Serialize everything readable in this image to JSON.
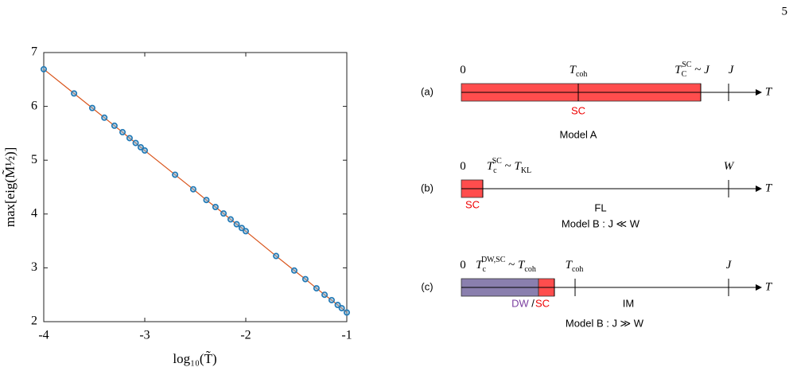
{
  "page_number": "5",
  "chart_data": {
    "type": "scatter",
    "connect": true,
    "x_label": "log₁₀(T̃)",
    "y_label": "max[eig(M̃½)]",
    "x": [
      -4,
      -3.7,
      -3.52,
      -3.4,
      -3.3,
      -3.22,
      -3.15,
      -3.09,
      -3.04,
      -3.0,
      -2.7,
      -2.52,
      -2.39,
      -2.3,
      -2.22,
      -2.15,
      -2.09,
      -2.04,
      -2.0,
      -1.7,
      -1.52,
      -1.41,
      -1.3,
      -1.22,
      -1.15,
      -1.09,
      -1.05,
      -1.0
    ],
    "values": [
      6.69,
      6.24,
      5.97,
      5.79,
      5.64,
      5.52,
      5.41,
      5.32,
      5.24,
      5.18,
      4.73,
      4.46,
      4.26,
      4.13,
      4.01,
      3.9,
      3.81,
      3.74,
      3.68,
      3.22,
      2.95,
      2.79,
      2.62,
      2.5,
      2.4,
      2.31,
      2.25,
      2.17
    ],
    "marker_color": "#1f77b4",
    "line_color": "#d95319",
    "xlim": [
      -4,
      -1
    ],
    "ylim": [
      2,
      7
    ],
    "xticks": [
      -4,
      -3,
      -2,
      -1
    ],
    "yticks": [
      2,
      3,
      4,
      5,
      6,
      7
    ]
  },
  "panels": [
    {
      "label": "(a)",
      "axis": "T",
      "ticks": [
        [
          {
            "text": "0"
          }
        ],
        [
          {
            "text": "T",
            "s": "i"
          },
          {
            "text": "coh",
            "s": "sub"
          }
        ],
        [
          {
            "text": "T",
            "s": "i"
          },
          {
            "text": "C",
            "s": "sub"
          },
          {
            "text": "SC",
            "s": "sup"
          },
          {
            "text": " ~ "
          },
          {
            "text": "J",
            "s": "i"
          }
        ],
        [
          {
            "text": "J",
            "s": "i"
          }
        ]
      ],
      "phases": [
        "SC"
      ],
      "model": "Model A"
    },
    {
      "label": "(b)",
      "axis": "T",
      "ticks": [
        [
          {
            "text": "0"
          }
        ],
        [
          {
            "text": "T",
            "s": "i"
          },
          {
            "text": "c",
            "s": "sub"
          },
          {
            "text": "SC",
            "s": "sup"
          },
          {
            "text": " ~ "
          },
          {
            "text": "T",
            "s": "i"
          },
          {
            "text": "KL",
            "s": "sub"
          }
        ],
        [
          {
            "text": "W",
            "s": "i"
          }
        ]
      ],
      "phases": [
        "SC",
        "FL"
      ],
      "model": "Model B : J ≪ W"
    },
    {
      "label": "(c)",
      "axis": "T",
      "ticks": [
        [
          {
            "text": "0"
          }
        ],
        [
          {
            "text": "T",
            "s": "i"
          },
          {
            "text": "c",
            "s": "sub"
          },
          {
            "text": "DW,SC",
            "s": "sup"
          },
          {
            "text": " ~ "
          },
          {
            "text": "T",
            "s": "i"
          },
          {
            "text": "coh",
            "s": "sub"
          }
        ],
        [
          {
            "text": "T",
            "s": "i"
          },
          {
            "text": "coh",
            "s": "sub"
          }
        ],
        [
          {
            "text": "J",
            "s": "i"
          }
        ]
      ],
      "phases": [
        "DW",
        "/",
        "SC",
        "IM"
      ],
      "model": "Model B : J ≫ W"
    }
  ]
}
